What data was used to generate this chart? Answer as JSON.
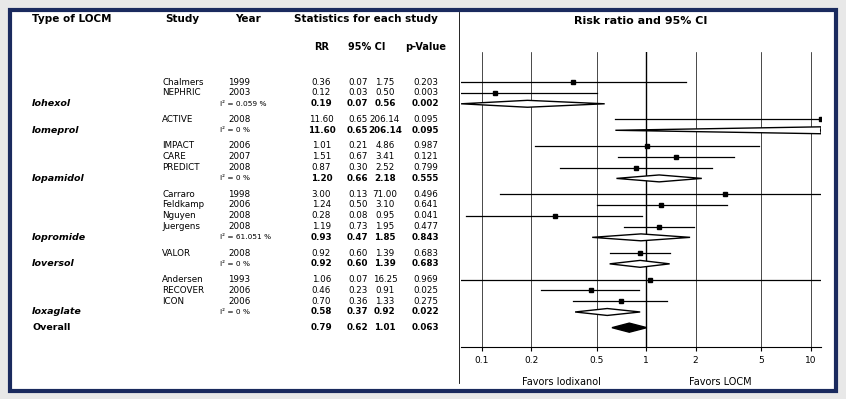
{
  "title_right": "Risk ratio and 95% CI",
  "background": "#e8e8e8",
  "border_color": "#1a2a5e",
  "studies": [
    {
      "group": "Iohexol",
      "name": "Chalmers",
      "year": "1999",
      "rr": 0.36,
      "ci_lo": 0.07,
      "ci_hi": 1.75,
      "pval": "0.203",
      "is_summary": false,
      "marker": "square"
    },
    {
      "group": "Iohexol",
      "name": "NEPHRIC",
      "year": "2003",
      "rr": 0.12,
      "ci_lo": 0.03,
      "ci_hi": 0.5,
      "pval": "0.003",
      "is_summary": false,
      "marker": "square"
    },
    {
      "group": "Iohexol",
      "name": "Iohexol",
      "year": "I² = 0.059 %",
      "rr": 0.19,
      "ci_lo": 0.07,
      "ci_hi": 0.56,
      "pval": "0.002",
      "is_summary": true,
      "marker": "diamond"
    },
    {
      "group": "Iomeprol",
      "name": "ACTIVE",
      "year": "2008",
      "rr": 11.6,
      "ci_lo": 0.65,
      "ci_hi": 206.14,
      "pval": "0.095",
      "is_summary": false,
      "marker": "square"
    },
    {
      "group": "Iomeprol",
      "name": "Iomeprol",
      "year": "I² = 0 %",
      "rr": 11.6,
      "ci_lo": 0.65,
      "ci_hi": 206.14,
      "pval": "0.095",
      "is_summary": true,
      "marker": "diamond"
    },
    {
      "group": "Iopamidol",
      "name": "IMPACT",
      "year": "2006",
      "rr": 1.01,
      "ci_lo": 0.21,
      "ci_hi": 4.86,
      "pval": "0.987",
      "is_summary": false,
      "marker": "square"
    },
    {
      "group": "Iopamidol",
      "name": "CARE",
      "year": "2007",
      "rr": 1.51,
      "ci_lo": 0.67,
      "ci_hi": 3.41,
      "pval": "0.121",
      "is_summary": false,
      "marker": "square"
    },
    {
      "group": "Iopamidol",
      "name": "PREDICT",
      "year": "2008",
      "rr": 0.87,
      "ci_lo": 0.3,
      "ci_hi": 2.52,
      "pval": "0.799",
      "is_summary": false,
      "marker": "square"
    },
    {
      "group": "Iopamidol",
      "name": "Iopamidol",
      "year": "I² = 0 %",
      "rr": 1.2,
      "ci_lo": 0.66,
      "ci_hi": 2.18,
      "pval": "0.555",
      "is_summary": true,
      "marker": "diamond"
    },
    {
      "group": "Iopromide",
      "name": "Carraro",
      "year": "1998",
      "rr": 3.0,
      "ci_lo": 0.13,
      "ci_hi": 71.0,
      "pval": "0.496",
      "is_summary": false,
      "marker": "square"
    },
    {
      "group": "Iopromide",
      "name": "Feldkamp",
      "year": "2006",
      "rr": 1.24,
      "ci_lo": 0.5,
      "ci_hi": 3.1,
      "pval": "0.641",
      "is_summary": false,
      "marker": "square"
    },
    {
      "group": "Iopromide",
      "name": "Nguyen",
      "year": "2008",
      "rr": 0.28,
      "ci_lo": 0.08,
      "ci_hi": 0.95,
      "pval": "0.041",
      "is_summary": false,
      "marker": "square"
    },
    {
      "group": "Iopromide",
      "name": "Juergens",
      "year": "2008",
      "rr": 1.19,
      "ci_lo": 0.73,
      "ci_hi": 1.95,
      "pval": "0.477",
      "is_summary": false,
      "marker": "square"
    },
    {
      "group": "Iopromide",
      "name": "Iopromide",
      "year": "I² = 61.051 %",
      "rr": 0.93,
      "ci_lo": 0.47,
      "ci_hi": 1.85,
      "pval": "0.843",
      "is_summary": true,
      "marker": "diamond"
    },
    {
      "group": "Ioversol",
      "name": "VALOR",
      "year": "2008",
      "rr": 0.92,
      "ci_lo": 0.6,
      "ci_hi": 1.39,
      "pval": "0.683",
      "is_summary": false,
      "marker": "square"
    },
    {
      "group": "Ioversol",
      "name": "Ioversol",
      "year": "I² = 0 %",
      "rr": 0.92,
      "ci_lo": 0.6,
      "ci_hi": 1.39,
      "pval": "0.683",
      "is_summary": true,
      "marker": "diamond"
    },
    {
      "group": "Ioxaglate",
      "name": "Andersen",
      "year": "1993",
      "rr": 1.06,
      "ci_lo": 0.07,
      "ci_hi": 16.25,
      "pval": "0.969",
      "is_summary": false,
      "marker": "square"
    },
    {
      "group": "Ioxaglate",
      "name": "RECOVER",
      "year": "2006",
      "rr": 0.46,
      "ci_lo": 0.23,
      "ci_hi": 0.91,
      "pval": "0.025",
      "is_summary": false,
      "marker": "square"
    },
    {
      "group": "Ioxaglate",
      "name": "ICON",
      "year": "2006",
      "rr": 0.7,
      "ci_lo": 0.36,
      "ci_hi": 1.33,
      "pval": "0.275",
      "is_summary": false,
      "marker": "square"
    },
    {
      "group": "Ioxaglate",
      "name": "Ioxaglate",
      "year": "I² = 0 %",
      "rr": 0.58,
      "ci_lo": 0.37,
      "ci_hi": 0.92,
      "pval": "0.022",
      "is_summary": true,
      "marker": "diamond"
    },
    {
      "group": "Overall",
      "name": "Overall",
      "year": "",
      "rr": 0.79,
      "ci_lo": 0.62,
      "ci_hi": 1.01,
      "pval": "0.063",
      "is_summary": true,
      "marker": "large_diamond"
    }
  ],
  "x_ticks": [
    0.1,
    0.2,
    0.5,
    1,
    2,
    5,
    10
  ],
  "x_label_left": "Favors Iodixanol",
  "x_label_right": "Favors LOCM",
  "rr_display": [
    "0.36",
    "0.12",
    "0.19",
    "11.60",
    "11.60",
    "1.01",
    "1.51",
    "0.87",
    "1.20",
    "3.00",
    "1.24",
    "0.28",
    "1.19",
    "0.93",
    "0.92",
    "0.92",
    "1.06",
    "0.46",
    "0.70",
    "0.58",
    "0.79"
  ],
  "ci_lo_display": [
    "0.07",
    "0.03",
    "0.07",
    "0.65",
    "0.65",
    "0.21",
    "0.67",
    "0.30",
    "0.66",
    "0.13",
    "0.50",
    "0.08",
    "0.73",
    "0.47",
    "0.60",
    "0.60",
    "0.07",
    "0.23",
    "0.36",
    "0.37",
    "0.62"
  ],
  "ci_hi_display": [
    "1.75",
    "0.50",
    "0.56",
    "206.14",
    "206.14",
    "4.86",
    "3.41",
    "2.52",
    "2.18",
    "71.00",
    "3.10",
    "0.95",
    "1.95",
    "1.85",
    "1.39",
    "1.39",
    "16.25",
    "0.91",
    "1.33",
    "0.92",
    "1.01"
  ]
}
